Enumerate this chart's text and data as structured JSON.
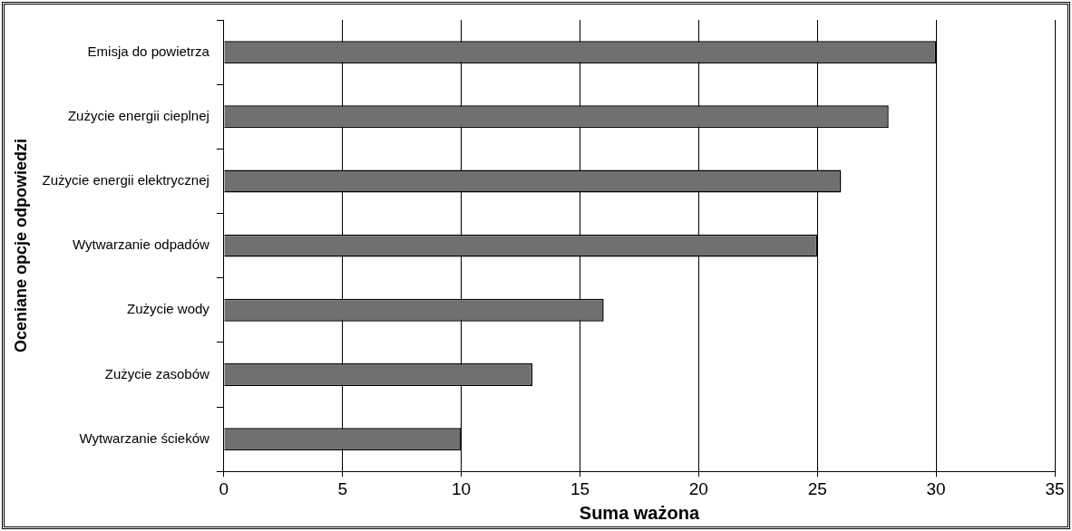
{
  "chart_data": {
    "type": "bar",
    "orientation": "horizontal",
    "xlabel": "Suma ważona",
    "ylabel": "Oceniane opcje odpowiedzi",
    "categories": [
      "Emisja do powietrza",
      "Zużycie energii cieplnej",
      "Zużycie energii elektrycznej",
      "Wytwarzanie odpadów",
      "Zużycie wody",
      "Zużycie zasobów",
      "Wytwarzanie ścieków"
    ],
    "values": [
      30,
      28,
      26,
      25,
      16,
      13,
      10
    ],
    "color": "#707070",
    "xlim": [
      0,
      35
    ],
    "xticks": [
      0,
      5,
      10,
      15,
      20,
      25,
      30,
      35
    ],
    "grid": "x",
    "legend": false
  }
}
